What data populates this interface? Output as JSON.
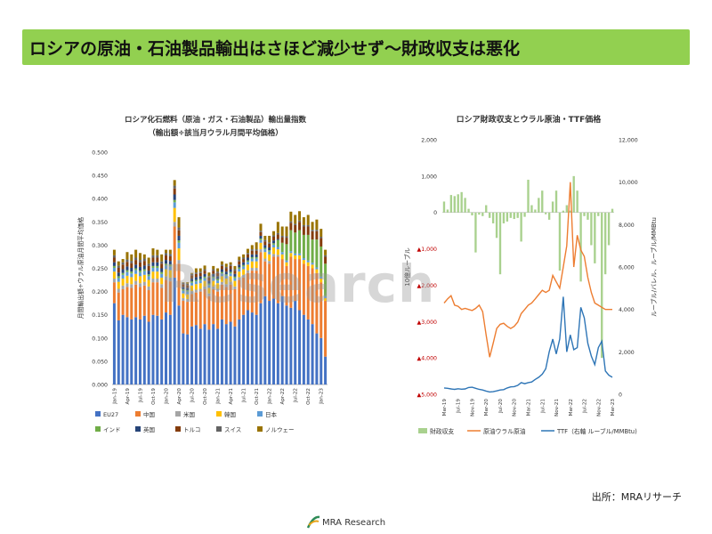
{
  "slide": {
    "title": "ロシアの原油・石油製品輸出はさほど減少せず～財政収支は悪化",
    "source": "出所：MRAリサーチ",
    "logo": "MRA Research",
    "watermark": "Research"
  },
  "chart_data": [
    {
      "type": "bar",
      "stacked": true,
      "title": "ロシア化石燃料（原油・ガス・石油製品）輸出量指数",
      "subtitle": "（輸出額÷該当月ウラル月間平均価格）",
      "ylabel": "月間輸出額÷ウラル原油月間平均価格",
      "xlabel": "",
      "ylim": [
        0,
        0.5
      ],
      "yticks": [
        "0.000",
        "0.050",
        "0.100",
        "0.150",
        "0.200",
        "0.250",
        "0.300",
        "0.350",
        "0.400",
        "0.450",
        "0.500"
      ],
      "xtick_labels": [
        "Jan-19",
        "Apr-19",
        "Jul-19",
        "Oct-19",
        "Jan-20",
        "Apr-20",
        "Jul-20",
        "Oct-20",
        "Jan-21",
        "Apr-21",
        "Jul-21",
        "Oct-21",
        "Jan-22",
        "Apr-22",
        "Jul-22",
        "Oct-22",
        "Jan-23"
      ],
      "legend_position": "bottom",
      "categories": [
        "Jan-19",
        "Feb-19",
        "Mar-19",
        "Apr-19",
        "May-19",
        "Jun-19",
        "Jul-19",
        "Aug-19",
        "Sep-19",
        "Oct-19",
        "Nov-19",
        "Dec-19",
        "Jan-20",
        "Feb-20",
        "Mar-20",
        "Apr-20",
        "May-20",
        "Jun-20",
        "Jul-20",
        "Aug-20",
        "Sep-20",
        "Oct-20",
        "Nov-20",
        "Dec-20",
        "Jan-21",
        "Feb-21",
        "Mar-21",
        "Apr-21",
        "May-21",
        "Jun-21",
        "Jul-21",
        "Aug-21",
        "Sep-21",
        "Oct-21",
        "Nov-21",
        "Dec-21",
        "Jan-22",
        "Feb-22",
        "Mar-22",
        "Apr-22",
        "May-22",
        "Jun-22",
        "Jul-22",
        "Aug-22",
        "Sep-22",
        "Oct-22",
        "Nov-22",
        "Dec-22",
        "Jan-23",
        "Feb-23"
      ],
      "totals": [
        0.29,
        0.265,
        0.27,
        0.285,
        0.28,
        0.29,
        0.285,
        0.28,
        0.275,
        0.29,
        0.29,
        0.28,
        0.29,
        0.29,
        0.44,
        0.36,
        0.22,
        0.22,
        0.24,
        0.25,
        0.25,
        0.255,
        0.24,
        0.255,
        0.25,
        0.265,
        0.26,
        0.265,
        0.255,
        0.275,
        0.28,
        0.29,
        0.3,
        0.3,
        0.345,
        0.32,
        0.33,
        0.34,
        0.35,
        0.34,
        0.335,
        0.37,
        0.365,
        0.37,
        0.36,
        0.365,
        0.35,
        0.355,
        0.335,
        0.29
      ],
      "series": [
        {
          "name": "EU27",
          "color": "#4472c4",
          "values": [
            0.175,
            0.138,
            0.15,
            0.145,
            0.14,
            0.145,
            0.14,
            0.148,
            0.135,
            0.15,
            0.148,
            0.14,
            0.155,
            0.15,
            0.23,
            0.17,
            0.11,
            0.108,
            0.125,
            0.128,
            0.12,
            0.13,
            0.118,
            0.13,
            0.12,
            0.14,
            0.13,
            0.135,
            0.125,
            0.14,
            0.15,
            0.16,
            0.155,
            0.15,
            0.175,
            0.19,
            0.18,
            0.185,
            0.175,
            0.19,
            0.17,
            0.165,
            0.18,
            0.16,
            0.15,
            0.14,
            0.13,
            0.11,
            0.1,
            0.06
          ]
        },
        {
          "name": "中国",
          "color": "#ed7d31",
          "values": [
            0.045,
            0.06,
            0.055,
            0.065,
            0.068,
            0.07,
            0.07,
            0.065,
            0.068,
            0.07,
            0.072,
            0.068,
            0.07,
            0.072,
            0.11,
            0.09,
            0.07,
            0.07,
            0.07,
            0.07,
            0.08,
            0.075,
            0.072,
            0.075,
            0.08,
            0.075,
            0.08,
            0.08,
            0.08,
            0.085,
            0.08,
            0.08,
            0.09,
            0.095,
            0.11,
            0.075,
            0.08,
            0.09,
            0.1,
            0.08,
            0.085,
            0.11,
            0.09,
            0.11,
            0.11,
            0.115,
            0.12,
            0.13,
            0.12,
            0.12
          ]
        },
        {
          "name": "米国",
          "color": "#a5a5a5",
          "values": [
            0.008,
            0.008,
            0.008,
            0.008,
            0.008,
            0.008,
            0.008,
            0.008,
            0.008,
            0.008,
            0.008,
            0.008,
            0.008,
            0.008,
            0.01,
            0.008,
            0.006,
            0.006,
            0.006,
            0.006,
            0.006,
            0.006,
            0.006,
            0.006,
            0.006,
            0.006,
            0.006,
            0.006,
            0.006,
            0.006,
            0.006,
            0.006,
            0.006,
            0.006,
            0.006,
            0.006,
            0.006,
            0.006,
            0.004,
            0,
            0,
            0,
            0,
            0,
            0,
            0,
            0,
            0,
            0,
            0
          ]
        },
        {
          "name": "韓国",
          "color": "#ffc000",
          "values": [
            0.015,
            0.015,
            0.015,
            0.016,
            0.015,
            0.015,
            0.015,
            0.015,
            0.014,
            0.015,
            0.015,
            0.014,
            0.015,
            0.016,
            0.03,
            0.025,
            0.01,
            0.01,
            0.012,
            0.012,
            0.012,
            0.012,
            0.012,
            0.012,
            0.012,
            0.012,
            0.012,
            0.012,
            0.012,
            0.012,
            0.012,
            0.012,
            0.014,
            0.014,
            0.014,
            0.014,
            0.014,
            0.014,
            0.012,
            0.01,
            0.008,
            0.008,
            0.008,
            0.008,
            0.008,
            0.008,
            0.008,
            0.008,
            0.008,
            0.006
          ]
        },
        {
          "name": "日本",
          "color": "#5b9bd5",
          "values": [
            0.008,
            0.008,
            0.008,
            0.008,
            0.008,
            0.008,
            0.008,
            0.008,
            0.008,
            0.008,
            0.008,
            0.008,
            0.008,
            0.008,
            0.012,
            0.012,
            0.006,
            0.006,
            0.006,
            0.006,
            0.006,
            0.006,
            0.006,
            0.006,
            0.006,
            0.006,
            0.006,
            0.006,
            0.006,
            0.006,
            0.006,
            0.006,
            0.006,
            0.006,
            0.006,
            0.006,
            0.006,
            0.006,
            0.005,
            0.005,
            0.004,
            0.004,
            0.004,
            0.004,
            0.004,
            0.004,
            0.004,
            0.004,
            0.004,
            0.004
          ]
        },
        {
          "name": "インド",
          "color": "#70ad47",
          "values": [
            0.004,
            0.004,
            0.004,
            0.004,
            0.004,
            0.004,
            0.004,
            0.004,
            0.004,
            0.004,
            0.004,
            0.004,
            0.004,
            0.004,
            0.005,
            0.005,
            0.003,
            0.003,
            0.003,
            0.003,
            0.003,
            0.003,
            0.003,
            0.003,
            0.003,
            0.003,
            0.003,
            0.003,
            0.003,
            0.003,
            0.003,
            0.003,
            0.003,
            0.003,
            0.003,
            0.003,
            0.003,
            0.003,
            0.015,
            0.02,
            0.035,
            0.045,
            0.045,
            0.05,
            0.05,
            0.055,
            0.05,
            0.06,
            0.065,
            0.07
          ]
        },
        {
          "name": "英国",
          "color": "#264478",
          "values": [
            0.008,
            0.008,
            0.008,
            0.008,
            0.008,
            0.008,
            0.008,
            0.008,
            0.008,
            0.008,
            0.008,
            0.008,
            0.008,
            0.008,
            0.012,
            0.01,
            0.005,
            0.005,
            0.006,
            0.006,
            0.006,
            0.006,
            0.006,
            0.006,
            0.006,
            0.006,
            0.006,
            0.006,
            0.006,
            0.006,
            0.006,
            0.006,
            0.006,
            0.006,
            0.006,
            0.006,
            0.006,
            0.006,
            0.002,
            0,
            0,
            0,
            0,
            0,
            0,
            0,
            0,
            0,
            0,
            0
          ]
        },
        {
          "name": "トルコ",
          "color": "#843c0c",
          "values": [
            0.01,
            0.01,
            0.01,
            0.01,
            0.01,
            0.01,
            0.01,
            0.01,
            0.01,
            0.01,
            0.01,
            0.01,
            0.01,
            0.01,
            0.013,
            0.012,
            0.006,
            0.006,
            0.007,
            0.007,
            0.007,
            0.007,
            0.007,
            0.007,
            0.007,
            0.007,
            0.007,
            0.007,
            0.007,
            0.007,
            0.007,
            0.007,
            0.008,
            0.008,
            0.008,
            0.008,
            0.008,
            0.008,
            0.01,
            0.012,
            0.014,
            0.016,
            0.016,
            0.018,
            0.018,
            0.018,
            0.018,
            0.018,
            0.018,
            0.015
          ]
        },
        {
          "name": "スイス",
          "color": "#636363",
          "values": [
            0.005,
            0.005,
            0.005,
            0.005,
            0.005,
            0.005,
            0.005,
            0.005,
            0.005,
            0.005,
            0.005,
            0.005,
            0.005,
            0.005,
            0.006,
            0.006,
            0.003,
            0.003,
            0.003,
            0.003,
            0.003,
            0.003,
            0.003,
            0.003,
            0.003,
            0.003,
            0.003,
            0.003,
            0.003,
            0.003,
            0.003,
            0.003,
            0.003,
            0.003,
            0.003,
            0.003,
            0.003,
            0.003,
            0.003,
            0.003,
            0.003,
            0.003,
            0.003,
            0.003,
            0.003,
            0.003,
            0.003,
            0.003,
            0.003,
            0.003
          ]
        },
        {
          "name": "ノルウェー",
          "color": "#997300",
          "values": [
            0.012,
            0.009,
            0.007,
            0.016,
            0.014,
            0.017,
            0.015,
            0.009,
            0.013,
            0.015,
            0.012,
            0.015,
            0.007,
            0.009,
            0.012,
            0.022,
            0.001,
            0.003,
            0.002,
            0.009,
            0.007,
            0.008,
            0.008,
            0.007,
            0.007,
            0.007,
            0.007,
            0.005,
            0.007,
            0.007,
            0.007,
            0.009,
            0.009,
            0.015,
            0.015,
            0.009,
            0.014,
            0.009,
            0.024,
            0.02,
            0.021,
            0.021,
            0.019,
            0.02,
            0.017,
            0.022,
            0.017,
            0.022,
            0.017,
            0.012
          ]
        }
      ]
    },
    {
      "type": "bar+line",
      "title": "ロシア財政収支とウラル原油・TTF価格",
      "ylabel": "10億ルーブル",
      "y2label": "ルーブル/バレル、ルーブル/MMBtu",
      "ylim": [
        -5000,
        2000
      ],
      "y2lim": [
        0,
        12000
      ],
      "yticks": [
        "-5,000",
        "-4,000",
        "-3,000",
        "-2,000",
        "-1,000",
        "0",
        "1,000",
        "2,000"
      ],
      "y2ticks": [
        "0",
        "2,000",
        "4,000",
        "6,000",
        "8,000",
        "10,000",
        "12,000"
      ],
      "xtick_labels": [
        "Mar-19",
        "Jul-19",
        "Nov-19",
        "Mar-20",
        "Jul-20",
        "Nov-20",
        "Mar-21",
        "Jul-21",
        "Nov-21",
        "Mar-22",
        "Jul-22",
        "Nov-22",
        "Mar-23"
      ],
      "legend_position": "bottom",
      "categories": [
        "Mar-19",
        "Apr-19",
        "May-19",
        "Jun-19",
        "Jul-19",
        "Aug-19",
        "Sep-19",
        "Oct-19",
        "Nov-19",
        "Dec-19",
        "Jan-20",
        "Feb-20",
        "Mar-20",
        "Apr-20",
        "May-20",
        "Jun-20",
        "Jul-20",
        "Aug-20",
        "Sep-20",
        "Oct-20",
        "Nov-20",
        "Dec-20",
        "Jan-21",
        "Feb-21",
        "Mar-21",
        "Apr-21",
        "May-21",
        "Jun-21",
        "Jul-21",
        "Aug-21",
        "Sep-21",
        "Oct-21",
        "Nov-21",
        "Dec-21",
        "Jan-22",
        "Feb-22",
        "Mar-22",
        "Apr-22",
        "May-22",
        "Jun-22",
        "Jul-22",
        "Aug-22",
        "Sep-22",
        "Oct-22",
        "Nov-22",
        "Dec-22",
        "Jan-23",
        "Feb-23",
        "Mar-23"
      ],
      "series": [
        {
          "name": "財政収支",
          "color": "#a9d18e",
          "axis": "left",
          "kind": "bar",
          "values": [
            300,
            80,
            480,
            450,
            500,
            560,
            400,
            100,
            -80,
            -1100,
            -60,
            -100,
            200,
            -150,
            -300,
            -700,
            -1700,
            -300,
            -250,
            -150,
            -180,
            -150,
            -800,
            -120,
            900,
            200,
            80,
            400,
            600,
            -50,
            -200,
            300,
            600,
            -1600,
            50,
            200,
            50,
            1000,
            600,
            -1900,
            -100,
            -200,
            -900,
            -1400,
            -100,
            -4000,
            -1700,
            -900,
            100
          ]
        },
        {
          "name": "原油ウラル原油",
          "color": "#ed7d31",
          "axis": "right",
          "kind": "line",
          "values": [
            4300,
            4500,
            4650,
            4200,
            4150,
            4000,
            4050,
            4000,
            3950,
            4050,
            4200,
            3900,
            2800,
            1750,
            2400,
            3100,
            3300,
            3350,
            3200,
            3100,
            3200,
            3400,
            3800,
            4000,
            4200,
            4300,
            4500,
            4700,
            4900,
            4800,
            4900,
            5600,
            5300,
            5000,
            6000,
            7000,
            10000,
            6000,
            7500,
            6800,
            6500,
            5500,
            4800,
            4300,
            4200,
            4100,
            4000,
            4000,
            4000
          ]
        },
        {
          "name": "TTF（右軸 ルーブル/MMBtu)",
          "color": "#2e75b6",
          "axis": "right",
          "kind": "line",
          "values": [
            300,
            280,
            250,
            230,
            260,
            240,
            250,
            320,
            330,
            280,
            230,
            200,
            150,
            110,
            120,
            160,
            200,
            220,
            300,
            350,
            360,
            420,
            550,
            500,
            550,
            580,
            700,
            800,
            950,
            1200,
            2000,
            2600,
            1900,
            2600,
            4600,
            2000,
            2800,
            2100,
            2200,
            4100,
            3600,
            2400,
            1800,
            1400,
            2200,
            2500,
            1100,
            900,
            800
          ]
        }
      ]
    }
  ]
}
